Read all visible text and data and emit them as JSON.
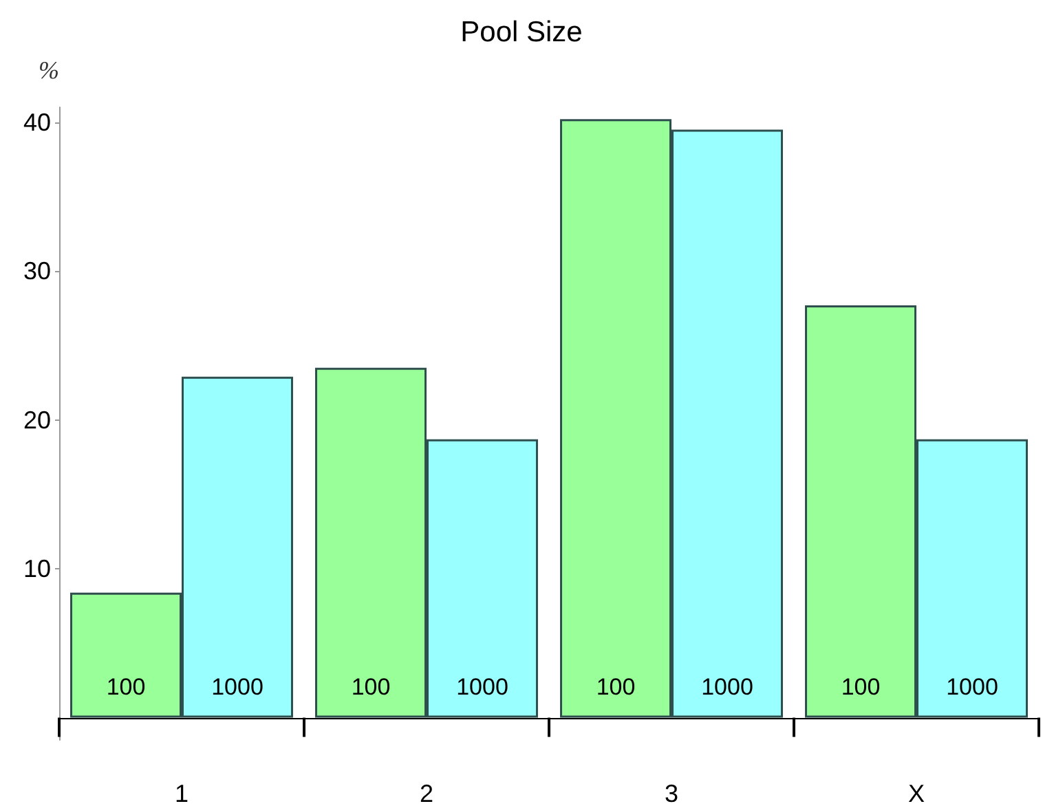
{
  "chart_data": {
    "type": "bar",
    "title": "Pool Size",
    "ylabel": "%",
    "categories": [
      "1",
      "2",
      "3",
      "X"
    ],
    "series": [
      {
        "name": "100",
        "color": "#99ff99",
        "values": [
          8.4,
          23.5,
          40.2,
          27.7
        ]
      },
      {
        "name": "1000",
        "color": "#99ffff",
        "values": [
          22.9,
          18.7,
          39.5,
          18.7
        ]
      }
    ],
    "ylim": [
      -1.5,
      41
    ],
    "yticks": [
      10,
      20,
      30,
      40
    ],
    "grid": false,
    "legend": false
  }
}
